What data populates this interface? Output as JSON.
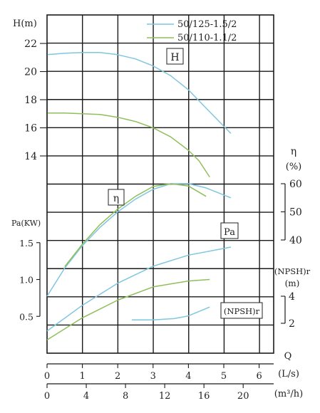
{
  "chart_data": {
    "type": "line",
    "legend": {
      "placement": "top-right",
      "items": [
        {
          "label": "50/125-1.5/2",
          "color": "#7fc6df"
        },
        {
          "label": "50/110-1.1/2",
          "color": "#8fbf5a"
        }
      ]
    },
    "panel_labels": {
      "H": "H",
      "eta": "η",
      "Pa": "Pa",
      "npsh": "(NPSH)r"
    },
    "axes": {
      "H": {
        "label": "H(m)",
        "ticks": [
          "14",
          "16",
          "18",
          "20",
          "22"
        ],
        "range": [
          14,
          22
        ]
      },
      "eta": {
        "label": "η",
        "unit": "(%)",
        "ticks": [
          "40",
          "50",
          "60"
        ],
        "range": [
          40,
          60
        ]
      },
      "Pa": {
        "label": "Pa(KW)",
        "ticks": [
          "0.5",
          "1.0",
          "1.5"
        ],
        "range": [
          0,
          1.5
        ]
      },
      "npsh": {
        "label": "(NPSH)r",
        "unit": "(m)",
        "ticks": [
          "2",
          "4"
        ],
        "range": [
          2,
          4
        ]
      },
      "Q": {
        "label": "Q",
        "unit": "(L/s)",
        "ticks": [
          "0",
          "1",
          "2",
          "3",
          "4",
          "5",
          "6"
        ],
        "range": [
          0,
          6
        ]
      },
      "Q_m3h": {
        "unit": "(m³/h)",
        "ticks": [
          "0",
          "4",
          "8",
          "12",
          "16",
          "20"
        ],
        "range": [
          0,
          21.6
        ]
      }
    },
    "series": [
      {
        "name": "50/125-1.5/2",
        "metric": "H",
        "color": "#7fc6df",
        "x": [
          0,
          0.5,
          1.0,
          1.5,
          2.0,
          2.5,
          3.0,
          3.5,
          4.0,
          4.5,
          5.2
        ],
        "y": [
          21.2,
          21.3,
          21.35,
          21.35,
          21.2,
          20.9,
          20.4,
          19.7,
          18.7,
          17.4,
          15.6
        ]
      },
      {
        "name": "50/110-1.1/2",
        "metric": "H",
        "color": "#8fbf5a",
        "x": [
          0,
          0.5,
          1.0,
          1.5,
          2.0,
          2.5,
          3.0,
          3.5,
          4.0,
          4.3,
          4.6
        ],
        "y": [
          17.05,
          17.05,
          17.0,
          16.95,
          16.75,
          16.45,
          16.0,
          15.35,
          14.4,
          13.65,
          12.5
        ]
      },
      {
        "name": "50/125-1.5/2",
        "metric": "eta",
        "color": "#7fc6df",
        "x": [
          0,
          0.5,
          1.0,
          1.5,
          2.0,
          2.5,
          3.0,
          3.5,
          4.0,
          4.5,
          5.2
        ],
        "y": [
          20,
          30,
          38,
          44.5,
          50,
          54.5,
          58,
          60,
          60,
          58.5,
          55
        ]
      },
      {
        "name": "50/110-1.1/2",
        "metric": "eta",
        "color": "#8fbf5a",
        "x": [
          0.5,
          1.0,
          1.5,
          2.0,
          2.5,
          3.0,
          3.5,
          4.0,
          4.5
        ],
        "y": [
          30.5,
          38.5,
          45.5,
          51,
          55.5,
          59,
          60,
          59.2,
          55.5
        ]
      },
      {
        "name": "50/125-1.5/2",
        "metric": "Pa",
        "color": "#7fc6df",
        "x": [
          0,
          1,
          2,
          3,
          4,
          5.2
        ],
        "y": [
          0.3,
          0.65,
          0.95,
          1.18,
          1.33,
          1.44
        ]
      },
      {
        "name": "50/110-1.1/2",
        "metric": "Pa",
        "color": "#8fbf5a",
        "x": [
          0,
          1,
          2,
          3,
          4,
          4.6
        ],
        "y": [
          0.18,
          0.48,
          0.72,
          0.9,
          0.98,
          1.0
        ]
      },
      {
        "name": "50/125-1.5/2",
        "metric": "npsh",
        "color": "#7fc6df",
        "x": [
          2.4,
          3.0,
          3.6,
          4.0,
          4.6
        ],
        "y": [
          2.25,
          2.25,
          2.35,
          2.55,
          3.2
        ]
      }
    ]
  }
}
